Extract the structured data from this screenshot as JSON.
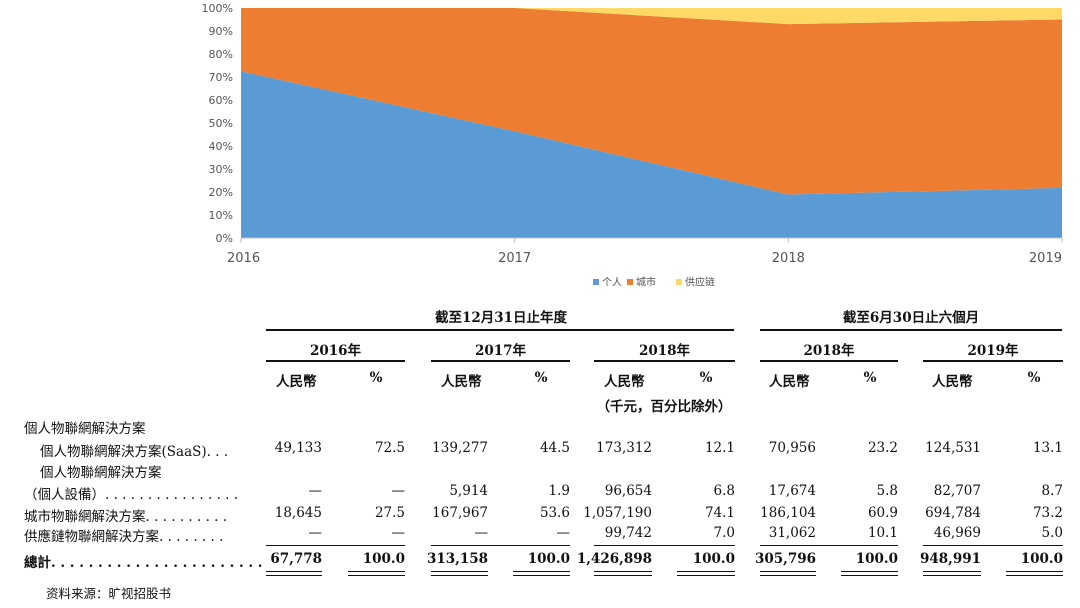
{
  "chart_data": {
    "type": "area",
    "stacked": "percent",
    "x": [
      "2016",
      "2017",
      "2018",
      "2019"
    ],
    "series": [
      {
        "name": "个人",
        "color": "#5b9bd5",
        "values": [
          72.5,
          46.4,
          18.9,
          21.8
        ]
      },
      {
        "name": "城市",
        "color": "#ed7d31",
        "values": [
          27.5,
          53.6,
          74.1,
          73.2
        ]
      },
      {
        "name": "供应链",
        "color": "#ffd966",
        "values": [
          0,
          0,
          7.0,
          5.0
        ]
      }
    ],
    "ylim": [
      0,
      100
    ],
    "yticks": [
      "0%",
      "10%",
      "20%",
      "30%",
      "40%",
      "50%",
      "60%",
      "70%",
      "80%",
      "90%",
      "100%"
    ],
    "legend_position": "bottom",
    "grid": false
  },
  "table": {
    "group_left": "截至12月31日止年度",
    "group_right": "截至6月30日止六個月",
    "years": [
      "2016年",
      "2017年",
      "2018年",
      "2018年",
      "2019年"
    ],
    "col_rmb": "人民幣",
    "col_pct": "%",
    "unit_note": "（千元，百分比除外）",
    "rows": [
      {
        "label": "個人物聯網解決方案",
        "values": [
          "",
          "",
          "",
          "",
          "",
          "",
          "",
          "",
          "",
          ""
        ]
      },
      {
        "label": "個人物聯網解決方案(SaaS). . .",
        "values": [
          "49,133",
          "72.5",
          "139,277",
          "44.5",
          "173,312",
          "12.1",
          "70,956",
          "23.2",
          "124,531",
          "13.1"
        ]
      },
      {
        "label": "個人物聯網解決方案",
        "values": [
          "",
          "",
          "",
          "",
          "",
          "",
          "",
          "",
          "",
          ""
        ]
      },
      {
        "label": "（個人設備）. . . . . . . . . . . . . . . .",
        "values": [
          "—",
          "—",
          "5,914",
          "1.9",
          "96,654",
          "6.8",
          "17,674",
          "5.8",
          "82,707",
          "8.7"
        ]
      },
      {
        "label": "城市物聯網解決方案. . . . . . . . . .",
        "values": [
          "18,645",
          "27.5",
          "167,967",
          "53.6",
          "1,057,190",
          "74.1",
          "186,104",
          "60.9",
          "694,784",
          "73.2"
        ]
      },
      {
        "label": "供應鏈物聯網解決方案. . . . . . . .",
        "values": [
          "—",
          "—",
          "—",
          "—",
          "99,742",
          "7.0",
          "31,062",
          "10.1",
          "46,969",
          "5.0"
        ]
      }
    ],
    "total": {
      "label": "總計. . . . . . . . . . . . . . . . . . . . . . .",
      "values": [
        "67,778",
        "100.0",
        "313,158",
        "100.0",
        "1,426,898",
        "100.0",
        "305,796",
        "100.0",
        "948,991",
        "100.0"
      ]
    }
  },
  "source": "资料来源：旷视招股书"
}
